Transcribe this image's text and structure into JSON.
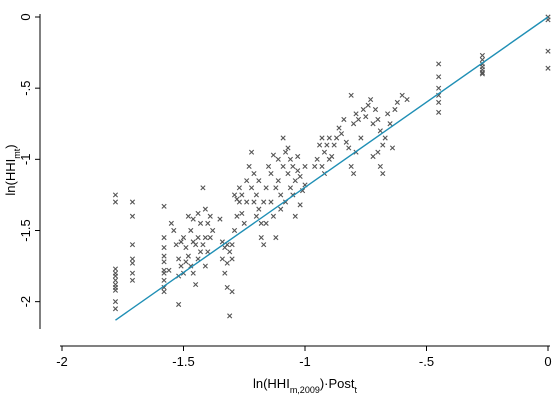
{
  "chart_data": {
    "type": "scatter",
    "xlabel": {
      "parts": [
        {
          "text": "ln(HHI",
          "style": "normal"
        },
        {
          "text": "m,2009",
          "style": "sub"
        },
        {
          "text": ")·Post",
          "style": "normal"
        },
        {
          "text": "t",
          "style": "sub"
        }
      ]
    },
    "ylabel": {
      "parts": [
        {
          "text": "ln(HHI",
          "style": "normal"
        },
        {
          "text": "mt",
          "style": "sub"
        },
        {
          "text": ")",
          "style": "normal"
        }
      ]
    },
    "xlim": [
      -2.0,
      0.0
    ],
    "ylim": [
      -2.15,
      0.0
    ],
    "x_ticks": [
      -2,
      -1.5,
      -1,
      -0.5,
      0
    ],
    "x_tick_labels": [
      "-2",
      "-1.5",
      "-1",
      "-.5",
      "0"
    ],
    "y_ticks": [
      0,
      -0.5,
      -1,
      -1.5,
      -2
    ],
    "y_tick_labels": [
      "0",
      "-.5",
      "-1",
      "-1.5",
      "-2"
    ],
    "grid": false,
    "marker": "x",
    "colors": {
      "points": "#555555",
      "fit_line": "#1f8fb5",
      "axis": "#000000"
    },
    "fit_line": {
      "x": [
        -1.78,
        0.0
      ],
      "y": [
        -2.13,
        0.0
      ]
    },
    "series": [
      {
        "x": [
          -1.78,
          -1.78,
          -1.78,
          -1.78,
          -1.78,
          -1.78,
          -1.78,
          -1.78,
          -1.78,
          -1.78,
          -1.78,
          -1.71,
          -1.71,
          -1.71,
          -1.71,
          -1.71,
          -1.71,
          -1.71,
          -1.58,
          -1.58,
          -1.58,
          -1.58,
          -1.58,
          -1.58,
          -1.58,
          -1.58,
          -1.58,
          -1.58,
          -1.56,
          -1.55,
          -1.54,
          -1.53,
          -1.52,
          -1.52,
          -1.52,
          -1.51,
          -1.51,
          -1.5,
          -1.5,
          -1.49,
          -1.49,
          -1.48,
          -1.48,
          -1.47,
          -1.47,
          -1.46,
          -1.46,
          -1.46,
          -1.45,
          -1.45,
          -1.44,
          -1.44,
          -1.44,
          -1.43,
          -1.43,
          -1.42,
          -1.42,
          -1.41,
          -1.41,
          -1.41,
          -1.4,
          -1.4,
          -1.39,
          -1.39,
          -1.38,
          -1.35,
          -1.34,
          -1.34,
          -1.33,
          -1.33,
          -1.32,
          -1.32,
          -1.32,
          -1.31,
          -1.31,
          -1.3,
          -1.3,
          -1.3,
          -1.29,
          -1.29,
          -1.28,
          -1.28,
          -1.27,
          -1.27,
          -1.26,
          -1.26,
          -1.25,
          -1.24,
          -1.24,
          -1.23,
          -1.22,
          -1.22,
          -1.21,
          -1.21,
          -1.2,
          -1.2,
          -1.19,
          -1.19,
          -1.18,
          -1.18,
          -1.17,
          -1.17,
          -1.16,
          -1.16,
          -1.15,
          -1.14,
          -1.14,
          -1.13,
          -1.13,
          -1.12,
          -1.12,
          -1.11,
          -1.11,
          -1.1,
          -1.1,
          -1.09,
          -1.09,
          -1.08,
          -1.08,
          -1.07,
          -1.07,
          -1.06,
          -1.06,
          -1.05,
          -1.05,
          -1.04,
          -1.04,
          -1.03,
          -1.03,
          -1.02,
          -1.02,
          -1.01,
          -1.0,
          -1.0,
          -0.96,
          -0.95,
          -0.94,
          -0.93,
          -0.93,
          -0.92,
          -0.92,
          -0.91,
          -0.9,
          -0.9,
          -0.89,
          -0.88,
          -0.87,
          -0.86,
          -0.85,
          -0.84,
          -0.83,
          -0.82,
          -0.81,
          -0.81,
          -0.8,
          -0.8,
          -0.79,
          -0.79,
          -0.78,
          -0.77,
          -0.76,
          -0.75,
          -0.74,
          -0.73,
          -0.72,
          -0.72,
          -0.71,
          -0.7,
          -0.7,
          -0.69,
          -0.69,
          -0.68,
          -0.68,
          -0.67,
          -0.66,
          -0.65,
          -0.64,
          -0.63,
          -0.62,
          -0.6,
          -0.58,
          -0.45,
          -0.45,
          -0.45,
          -0.45,
          -0.45,
          -0.45,
          -0.27,
          -0.27,
          -0.27,
          -0.27,
          -0.27,
          -0.27,
          -0.27,
          0.0,
          0.0,
          0.0,
          0.0
        ],
        "y": [
          -1.25,
          -1.3,
          -1.77,
          -1.8,
          -1.82,
          -1.85,
          -1.88,
          -1.9,
          -1.92,
          -2.0,
          -2.05,
          -1.3,
          -1.4,
          -1.6,
          -1.7,
          -1.73,
          -1.8,
          -1.85,
          -1.33,
          -1.55,
          -1.62,
          -1.68,
          -1.72,
          -1.78,
          -1.8,
          -1.85,
          -1.9,
          -1.93,
          -1.78,
          -1.45,
          -1.5,
          -1.6,
          -1.7,
          -1.82,
          -2.02,
          -1.58,
          -1.75,
          -1.55,
          -1.8,
          -1.62,
          -1.72,
          -1.4,
          -1.68,
          -1.5,
          -1.75,
          -1.42,
          -1.58,
          -1.8,
          -1.6,
          -1.88,
          -1.38,
          -1.55,
          -1.7,
          -1.45,
          -1.65,
          -1.2,
          -1.6,
          -1.35,
          -1.55,
          -1.75,
          -1.45,
          -1.65,
          -1.4,
          -1.55,
          -1.5,
          -1.42,
          -1.58,
          -1.7,
          -1.62,
          -1.8,
          -1.6,
          -1.73,
          -1.9,
          -1.65,
          -2.1,
          -1.6,
          -1.7,
          -1.93,
          -1.25,
          -1.5,
          -1.28,
          -1.4,
          -1.2,
          -1.3,
          -1.25,
          -1.38,
          -1.45,
          -1.15,
          -1.3,
          -1.05,
          -0.95,
          -1.2,
          -1.3,
          -1.1,
          -1.25,
          -1.4,
          -1.15,
          -1.35,
          -1.45,
          -1.55,
          -1.3,
          -1.6,
          -1.2,
          -1.45,
          -1.05,
          -1.1,
          -1.3,
          -0.97,
          -1.4,
          -1.2,
          -1.55,
          -1.0,
          -1.15,
          -1.25,
          -1.35,
          -0.85,
          -1.05,
          -0.95,
          -1.3,
          -0.92,
          -1.1,
          -1.0,
          -1.2,
          -1.05,
          -1.25,
          -1.15,
          -1.4,
          -0.98,
          -1.08,
          -1.12,
          -1.32,
          -1.22,
          -1.05,
          -1.18,
          -1.05,
          -1.0,
          -0.9,
          -0.85,
          -1.05,
          -0.95,
          -1.1,
          -0.9,
          -0.85,
          -1.0,
          -0.98,
          -0.9,
          -0.85,
          -0.78,
          -0.82,
          -0.72,
          -0.88,
          -0.92,
          -0.55,
          -1.05,
          -0.75,
          -1.1,
          -0.68,
          -0.95,
          -0.72,
          -0.85,
          -0.65,
          -0.7,
          -0.62,
          -0.58,
          -0.75,
          -0.98,
          -0.65,
          -0.72,
          -0.95,
          -0.8,
          -1.05,
          -0.9,
          -1.1,
          -0.85,
          -0.68,
          -0.75,
          -0.92,
          -0.65,
          -0.6,
          -0.55,
          -0.58,
          -0.33,
          -0.42,
          -0.5,
          -0.55,
          -0.6,
          -0.67,
          -0.27,
          -0.3,
          -0.33,
          -0.35,
          -0.37,
          -0.39,
          -0.4,
          0.0,
          -0.02,
          -0.24,
          -0.36
        ]
      }
    ]
  }
}
